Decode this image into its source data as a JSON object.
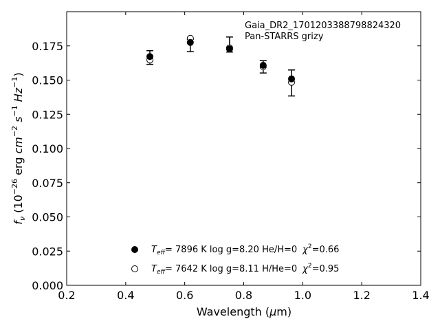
{
  "chart_data": {
    "type": "scatter",
    "xlabel": "Wavelength (μm)",
    "ylabel": "f_ν (10^−26 erg cm^−2 s^−1 Hz^−1)",
    "xlim": [
      0.2,
      1.4
    ],
    "ylim": [
      0.0,
      0.2
    ],
    "xticks": [
      "0.2",
      "0.4",
      "0.6",
      "0.8",
      "1.0",
      "1.2",
      "1.4"
    ],
    "yticks": [
      "0.000",
      "0.025",
      "0.050",
      "0.075",
      "0.100",
      "0.125",
      "0.150",
      "0.175"
    ],
    "annotation": [
      "Gaia_DR2_1701203388798824320",
      "Pan-STARRS grizy"
    ],
    "grid": false,
    "observed": {
      "x": [
        0.482,
        0.619,
        0.752,
        0.866,
        0.962
      ],
      "y": [
        0.1665,
        0.1753,
        0.176,
        0.1597,
        0.1479
      ],
      "yerr": [
        0.005,
        0.0045,
        0.0055,
        0.0045,
        0.0095
      ]
    },
    "series": [
      {
        "marker": "filled-circle",
        "legend": "T_eff=  7896 K  log g=8.20  He/H=0  χ²=0.66",
        "x": [
          0.482,
          0.619,
          0.752,
          0.866,
          0.962
        ],
        "y": [
          0.1672,
          0.1775,
          0.1728,
          0.1608,
          0.1509
        ]
      },
      {
        "marker": "open-circle",
        "legend": "T_eff=  7642 K  log g=8.11  H/He=0  χ²=0.95",
        "x": [
          0.482,
          0.619,
          0.752,
          0.866,
          0.962
        ],
        "y": [
          0.1648,
          0.1805,
          0.1735,
          0.1598,
          0.1484
        ]
      }
    ],
    "legend_position": "bottom-center",
    "legend_rows": [
      {
        "teff_label": "T",
        "teff_sub": "eff",
        "teff_value": "=  7896 K  log g=8.20  He/H=0",
        "chi_label": "χ",
        "chi_sup": "2",
        "chi_value": "=0.66"
      },
      {
        "teff_label": "T",
        "teff_sub": "eff",
        "teff_value": "=  7642 K  log g=8.11  H/He=0",
        "chi_label": "χ",
        "chi_sup": "2",
        "chi_value": "=0.95"
      }
    ],
    "ylabel_parts": {
      "f": "f",
      "nu": "ν",
      "open": " (10",
      "exp1": "−26",
      "erg": " erg ",
      "cm": "cm",
      "exp2": "−2",
      "s": " s",
      "exp3": "−1",
      "hz": " Hz",
      "exp4": "−1",
      "close": ")"
    },
    "xlabel_parts": {
      "pre": "Wavelength (",
      "mu": "μ",
      "post": "m)"
    }
  }
}
